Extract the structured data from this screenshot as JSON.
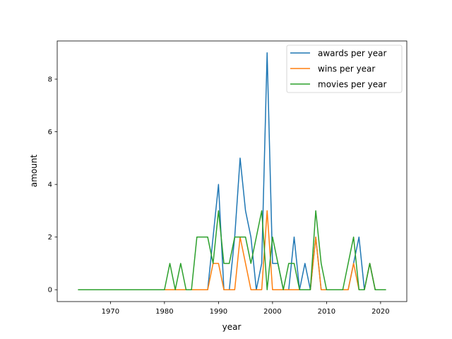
{
  "chart_data": {
    "type": "line",
    "title": "",
    "xlabel": "year",
    "ylabel": "amount",
    "xlim": [
      1960.15,
      2024.85
    ],
    "ylim": [
      -0.45,
      9.45
    ],
    "xticks": [
      1970,
      1980,
      1990,
      2000,
      2010,
      2020
    ],
    "yticks": [
      0,
      2,
      4,
      6,
      8
    ],
    "legend_position": "top-right",
    "grid": false,
    "x": [
      1964,
      1965,
      1966,
      1967,
      1968,
      1969,
      1970,
      1971,
      1972,
      1973,
      1974,
      1975,
      1976,
      1977,
      1978,
      1979,
      1980,
      1981,
      1982,
      1983,
      1984,
      1985,
      1986,
      1987,
      1988,
      1989,
      1990,
      1991,
      1992,
      1993,
      1994,
      1995,
      1996,
      1997,
      1998,
      1999,
      2000,
      2001,
      2002,
      2003,
      2004,
      2005,
      2006,
      2007,
      2008,
      2009,
      2010,
      2011,
      2012,
      2013,
      2014,
      2015,
      2016,
      2017,
      2018,
      2019,
      2020,
      2021
    ],
    "series": [
      {
        "name": "awards per year",
        "color": "#1f77b4",
        "values": [
          0,
          0,
          0,
          0,
          0,
          0,
          0,
          0,
          0,
          0,
          0,
          0,
          0,
          0,
          0,
          0,
          0,
          0,
          0,
          0,
          0,
          0,
          0,
          0,
          0,
          2,
          4,
          0,
          0,
          2,
          5,
          3,
          2,
          0,
          1,
          9,
          1,
          1,
          0,
          0,
          2,
          0,
          1,
          0,
          2,
          0,
          0,
          0,
          0,
          0,
          0,
          1,
          2,
          0,
          1,
          0,
          0,
          0
        ]
      },
      {
        "name": "wins per year",
        "color": "#ff7f0e",
        "values": [
          0,
          0,
          0,
          0,
          0,
          0,
          0,
          0,
          0,
          0,
          0,
          0,
          0,
          0,
          0,
          0,
          0,
          0,
          0,
          0,
          0,
          0,
          0,
          0,
          0,
          1,
          1,
          0,
          0,
          0,
          2,
          1,
          0,
          0,
          0,
          3,
          0,
          0,
          0,
          0,
          0,
          0,
          0,
          0,
          2,
          0,
          0,
          0,
          0,
          0,
          0,
          1,
          0,
          0,
          1,
          0,
          0,
          0
        ]
      },
      {
        "name": "movies per year",
        "color": "#2ca02c",
        "values": [
          0,
          0,
          0,
          0,
          0,
          0,
          0,
          0,
          0,
          0,
          0,
          0,
          0,
          0,
          0,
          0,
          0,
          1,
          0,
          1,
          0,
          0,
          2,
          2,
          2,
          1,
          3,
          1,
          1,
          2,
          2,
          2,
          1,
          2,
          3,
          0,
          2,
          1,
          0,
          1,
          1,
          0,
          0,
          0,
          3,
          1,
          0,
          0,
          0,
          0,
          1,
          2,
          0,
          0,
          1,
          0,
          0,
          0
        ]
      }
    ]
  }
}
